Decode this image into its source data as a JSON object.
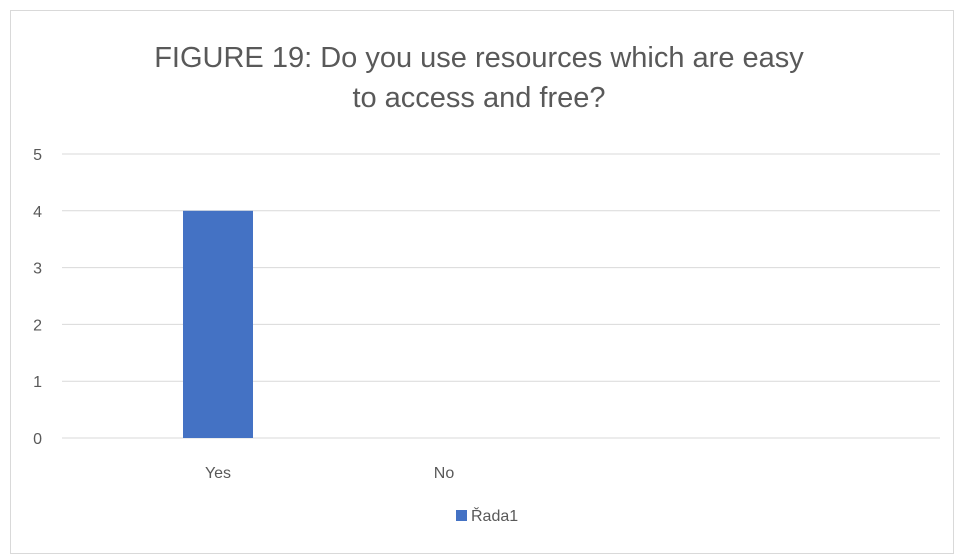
{
  "chart_data": {
    "type": "bar",
    "title_lines": [
      "FIGURE 19: Do you use resources which are easy",
      "to access and free?"
    ],
    "categories": [
      "Yes",
      "No"
    ],
    "series": [
      {
        "name": "Řada1",
        "values": [
          4,
          0
        ]
      }
    ],
    "ylim": [
      0,
      5
    ],
    "yticks": [
      "0",
      "1",
      "2",
      "3",
      "4",
      "5"
    ],
    "grid": true,
    "legend_position": "bottom",
    "colors": {
      "series": "#4472c4",
      "gridline": "#d9d9d9",
      "text": "#595959"
    }
  }
}
